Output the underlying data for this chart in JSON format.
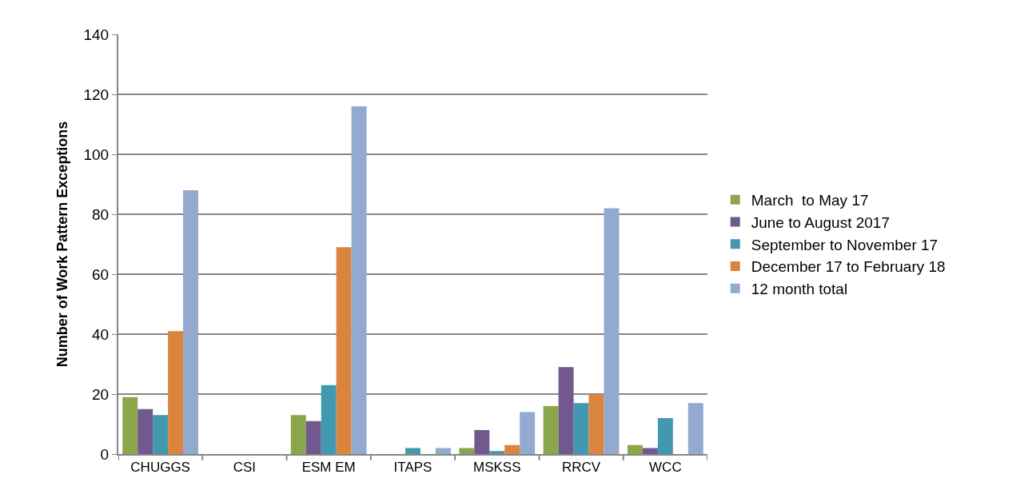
{
  "chart_data": {
    "type": "bar",
    "ylabel": "Number of Work Pattern Exceptions",
    "categories": [
      "CHUGGS",
      "CSI",
      "ESM EM",
      "ITAPS",
      "MSKSS",
      "RRCV",
      "WCC"
    ],
    "series": [
      {
        "name": "March  to May 17",
        "color": "#8ba64b",
        "values": [
          19,
          0,
          13,
          0,
          2,
          16,
          3
        ]
      },
      {
        "name": "June to August 2017",
        "color": "#71588f",
        "values": [
          15,
          0,
          11,
          0,
          8,
          29,
          2
        ]
      },
      {
        "name": "September to November 17",
        "color": "#4198af",
        "values": [
          13,
          0,
          23,
          2,
          1,
          17,
          12
        ]
      },
      {
        "name": "December 17 to February 18",
        "color": "#db843d",
        "values": [
          41,
          0,
          69,
          0,
          3,
          20,
          0
        ]
      },
      {
        "name": "12 month total",
        "color": "#93a9cf",
        "values": [
          88,
          0,
          116,
          2,
          14,
          82,
          17
        ]
      }
    ],
    "ylim": [
      0,
      140
    ],
    "yticks": [
      0,
      20,
      40,
      60,
      80,
      100,
      120,
      140
    ],
    "grid": "y",
    "legend": "right"
  }
}
